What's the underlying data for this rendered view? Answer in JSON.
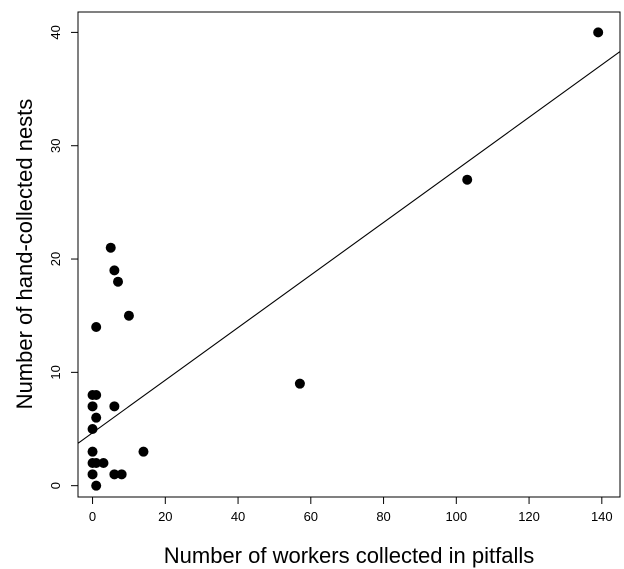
{
  "chart_data": {
    "type": "scatter",
    "xlabel": "Number of workers collected in pitfalls",
    "ylabel": "Number of hand-collected nests",
    "xlim": [
      -4,
      145
    ],
    "ylim": [
      -1,
      41.8
    ],
    "xticks": [
      0,
      20,
      40,
      60,
      80,
      100,
      120,
      140
    ],
    "yticks": [
      0,
      10,
      20,
      30,
      40
    ],
    "grid": false,
    "legend": "none",
    "marker_color": "#000000",
    "points": [
      {
        "x": 0,
        "y": 1
      },
      {
        "x": 0,
        "y": 2
      },
      {
        "x": 0,
        "y": 3
      },
      {
        "x": 0,
        "y": 5
      },
      {
        "x": 0,
        "y": 7
      },
      {
        "x": 0,
        "y": 8
      },
      {
        "x": 1,
        "y": 0
      },
      {
        "x": 1,
        "y": 2
      },
      {
        "x": 1,
        "y": 6
      },
      {
        "x": 1,
        "y": 8
      },
      {
        "x": 1,
        "y": 14
      },
      {
        "x": 3,
        "y": 2
      },
      {
        "x": 5,
        "y": 21
      },
      {
        "x": 6,
        "y": 1
      },
      {
        "x": 6,
        "y": 7
      },
      {
        "x": 6,
        "y": 19
      },
      {
        "x": 7,
        "y": 18
      },
      {
        "x": 8,
        "y": 1
      },
      {
        "x": 10,
        "y": 15
      },
      {
        "x": 14,
        "y": 3
      },
      {
        "x": 57,
        "y": 9
      },
      {
        "x": 103,
        "y": 27
      },
      {
        "x": 139,
        "y": 40
      }
    ],
    "regression_line": {
      "intercept": 4.67,
      "slope": 0.232
    }
  }
}
